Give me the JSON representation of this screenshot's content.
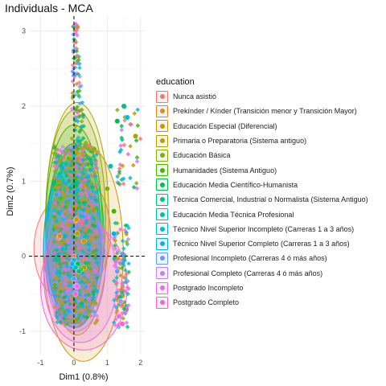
{
  "chart_data": {
    "type": "scatter",
    "title": "Individuals - MCA",
    "xlabel": "Dim1 (0.8%)",
    "ylabel": "Dim2 (0.7%)",
    "xlim": [
      -1.35,
      2.15
    ],
    "ylim": [
      -1.3,
      3.2
    ],
    "x_ticks": [
      -1,
      0,
      1,
      2
    ],
    "y_ticks": [
      -1,
      0,
      1,
      2,
      3
    ],
    "reference_lines": {
      "x": 0,
      "y": 0,
      "style": "dashed"
    },
    "grid": true,
    "legend": {
      "title": "education",
      "position": "right"
    },
    "series": [
      {
        "name": "Nunca asistió",
        "color": "#F8766D",
        "points": [
          [
            -0.45,
            0.25
          ],
          [
            0.0,
            0.0
          ]
        ],
        "ellipse": {
          "cx": -0.2,
          "cy": 0.1,
          "rx": 1.0,
          "ry": 0.7
        }
      },
      {
        "name": "Prekínder / Kínder (Transición menor y Transición Mayor)",
        "color": "#E7851E",
        "points": [
          [
            -0.42,
            0.27
          ],
          [
            0.05,
            0.48
          ]
        ],
        "ellipse": {
          "cx": 0.15,
          "cy": 0.3,
          "rx": 0.95,
          "ry": 0.75
        }
      },
      {
        "name": "Educación Especial (Diferencial)",
        "color": "#D09400",
        "points": [
          [
            0.08,
            0.49
          ],
          [
            0.3,
            0.2
          ]
        ],
        "ellipse": {
          "cx": 0.28,
          "cy": 0.05,
          "rx": 1.2,
          "ry": 1.45
        }
      },
      {
        "name": "Primaria o Preparatoria (Sistema antiguo)",
        "color": "#B2A100",
        "points": [
          [
            0.1,
            0.3
          ],
          [
            1.85,
            1.6
          ]
        ],
        "ellipse": {
          "cx": 0.1,
          "cy": 0.5,
          "rx": 0.95,
          "ry": 1.55
        }
      },
      {
        "name": "Educación Básica",
        "color": "#89AC00",
        "points": [
          [
            0.3,
            -0.15
          ],
          [
            1.0,
            0.9
          ]
        ],
        "ellipse": {
          "cx": 0.05,
          "cy": 0.5,
          "rx": 0.9,
          "ry": 1.45
        }
      },
      {
        "name": "Humanidades (Sistema Antiguo)",
        "color": "#45B500",
        "points": [
          [
            0.2,
            -0.18
          ],
          [
            1.2,
            0.6
          ]
        ],
        "ellipse": {
          "cx": 0.0,
          "cy": 0.4,
          "rx": 0.85,
          "ry": 1.35
        }
      },
      {
        "name": "Educación Media Científico-Humanista",
        "color": "#00BC51",
        "points": [
          [
            0.12,
            -0.1
          ],
          [
            1.3,
            1.8
          ]
        ],
        "ellipse": {
          "cx": 0.0,
          "cy": 0.3,
          "rx": 0.8,
          "ry": 1.2
        }
      },
      {
        "name": "Técnica Comercial, Industrial o Normalista (Sistema Antiguo)",
        "color": "#00C087",
        "points": [
          [
            0.15,
            -0.2
          ],
          [
            1.5,
            2.0
          ]
        ],
        "ellipse": {
          "cx": 0.05,
          "cy": 0.25,
          "rx": 0.85,
          "ry": 1.2
        }
      },
      {
        "name": "Educación Media Técnica Profesional",
        "color": "#00C0B2",
        "points": [
          [
            0.05,
            -0.15
          ],
          [
            1.1,
            1.2
          ]
        ],
        "ellipse": {
          "cx": 0.0,
          "cy": 0.2,
          "rx": 0.8,
          "ry": 1.05
        }
      },
      {
        "name": "Técnico Nivel Superior Incompleto (Carreras 1 a 3 años)",
        "color": "#00BCD6",
        "points": [
          [
            0.0,
            -0.05
          ],
          [
            1.6,
            1.85
          ]
        ],
        "ellipse": {
          "cx": -0.05,
          "cy": 0.2,
          "rx": 0.8,
          "ry": 1.05
        }
      },
      {
        "name": "Técnico Nivel Superior Completo (Carreras 1 a 3 años)",
        "color": "#00B0F6",
        "points": [
          [
            -0.05,
            -0.1
          ],
          [
            1.2,
            0.3
          ]
        ],
        "ellipse": {
          "cx": -0.05,
          "cy": 0.15,
          "rx": 0.85,
          "ry": 1.05
        }
      },
      {
        "name": "Profesional Incompleto (Carreras 4 ó más años)",
        "color": "#619CFF",
        "points": [
          [
            0.0,
            -0.3
          ],
          [
            1.3,
            -0.2
          ]
        ],
        "ellipse": {
          "cx": 0.0,
          "cy": 0.05,
          "rx": 0.85,
          "ry": 1.0
        }
      },
      {
        "name": "Profesional Completo (Carreras 4 ó más años)",
        "color": "#B983FF",
        "points": [
          [
            0.05,
            -0.4
          ],
          [
            1.4,
            -0.6
          ]
        ],
        "ellipse": {
          "cx": 0.05,
          "cy": -0.1,
          "rx": 0.9,
          "ry": 0.9
        }
      },
      {
        "name": "Postgrado Incompleto",
        "color": "#E76BF3",
        "points": [
          [
            0.1,
            -0.4
          ],
          [
            1.35,
            -0.8
          ]
        ],
        "ellipse": {
          "cx": 0.2,
          "cy": -0.3,
          "rx": 1.1,
          "ry": 0.85
        }
      },
      {
        "name": "Postgrado Completo",
        "color": "#FD61D1",
        "points": [
          [
            0.05,
            -0.5
          ],
          [
            1.45,
            -0.9
          ]
        ],
        "ellipse": {
          "cx": 0.3,
          "cy": -0.4,
          "rx": 1.3,
          "ry": 0.85
        }
      }
    ]
  }
}
